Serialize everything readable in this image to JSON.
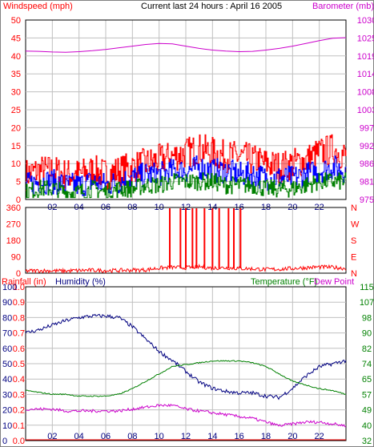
{
  "colors": {
    "frame": "#000000",
    "grid": "#c0c0c0",
    "wind": "#ff0000",
    "wind_avg": "#0000ff",
    "wind_low": "#008000",
    "barometer": "#cc00cc",
    "direction": "#ff0000",
    "rainfall": "#ff0000",
    "humidity": "#000080",
    "temperature": "#008000",
    "dew_point": "#cc00cc"
  },
  "chart_data": [
    {
      "type": "line",
      "title": "Current last 24 hours : April 16 2005",
      "ylabel": "Windspeed (mph)",
      "y2label": "Barometer (mb)",
      "ylim": [
        0,
        50
      ],
      "y2lim": [
        975,
        1030
      ],
      "yticks": [
        "0",
        "5",
        "10",
        "15",
        "20",
        "25",
        "30",
        "35",
        "40",
        "45",
        "50"
      ],
      "y2ticks": [
        "975",
        "981",
        "986",
        "992",
        "997",
        "1003",
        "1008",
        "1014",
        "1019",
        "1025",
        "1030"
      ],
      "xlim": [
        0,
        24
      ],
      "xticks": [
        "02",
        "04",
        "06",
        "08",
        "10",
        "12",
        "14",
        "16",
        "18",
        "20",
        "22"
      ],
      "grid": true,
      "x": [
        0,
        1,
        2,
        3,
        4,
        5,
        6,
        7,
        8,
        9,
        10,
        11,
        12,
        13,
        14,
        15,
        16,
        17,
        18,
        19,
        20,
        21,
        22,
        23,
        24
      ],
      "series": [
        {
          "name": "Windspeed (mph)",
          "axis": "left",
          "values": [
            7,
            8,
            8,
            7,
            7,
            8,
            7,
            8,
            9,
            10,
            11,
            12,
            13,
            14,
            13,
            12,
            12,
            11,
            10,
            9,
            10,
            11,
            13,
            14,
            12
          ]
        },
        {
          "name": "",
          "axis": "left",
          "values": [
            4,
            5,
            5,
            4,
            4,
            5,
            4,
            5,
            6,
            7,
            7,
            8,
            8,
            9,
            8,
            8,
            7,
            7,
            6,
            6,
            6,
            7,
            8,
            9,
            8
          ]
        },
        {
          "name": "",
          "axis": "left",
          "values": [
            2,
            3,
            3,
            2,
            2,
            3,
            2,
            3,
            3,
            4,
            4,
            5,
            5,
            5,
            5,
            4,
            4,
            4,
            3,
            3,
            3,
            4,
            5,
            5,
            5
          ]
        },
        {
          "name": "Barometer (mb)",
          "axis": "right",
          "values": [
            1020.5,
            1020.4,
            1020.2,
            1020.1,
            1020.3,
            1020.6,
            1021.0,
            1021.5,
            1022.0,
            1022.5,
            1022.8,
            1022.7,
            1022.0,
            1021.3,
            1020.8,
            1020.5,
            1020.3,
            1020.4,
            1020.8,
            1021.3,
            1022.0,
            1022.8,
            1023.7,
            1024.4,
            1024.6
          ]
        }
      ]
    },
    {
      "type": "line",
      "ylim": [
        0,
        360
      ],
      "yticks": [
        "0",
        "90",
        "180",
        "270",
        "360"
      ],
      "y2ticks": [
        "N",
        "E",
        "S",
        "W",
        "N"
      ],
      "xlim": [
        0,
        24
      ],
      "grid": true,
      "x": [
        0,
        1,
        2,
        3,
        4,
        5,
        6,
        7,
        8,
        9,
        10,
        11,
        12,
        13,
        14,
        15,
        16,
        17,
        18,
        19,
        20,
        21,
        22,
        23,
        24
      ],
      "series": [
        {
          "name": "",
          "values": [
            12,
            14,
            13,
            12,
            15,
            16,
            14,
            15,
            17,
            18,
            28,
            32,
            30,
            35,
            28,
            30,
            26,
            24,
            20,
            22,
            26,
            30,
            34,
            32,
            26
          ]
        }
      ],
      "spikes_x": [
        10.8,
        11.6,
        12.0,
        12.5,
        12.8,
        13.4,
        14.0,
        14.5,
        15.2,
        15.6,
        16.1
      ]
    },
    {
      "type": "line",
      "ylabel": "Rainfall (in)",
      "ylabel2": "Humidity (%)",
      "y2label": "Temperature (°F)",
      "y2label2": "Dew Point",
      "ylim": [
        0,
        1
      ],
      "yticks": [
        "0.0",
        "0.1",
        "0.2",
        "0.3",
        "0.4",
        "0.5",
        "0.6",
        "0.7",
        "0.8",
        "0.9",
        "1.0"
      ],
      "humidity_ticks": [
        "0",
        "10",
        "20",
        "30",
        "40",
        "50",
        "60",
        "70",
        "80",
        "90",
        "100"
      ],
      "y2lim": [
        32,
        115
      ],
      "y2ticks": [
        "32",
        "40",
        "49",
        "57",
        "65",
        "74",
        "82",
        "90",
        "98",
        "107",
        "115"
      ],
      "xlim": [
        0,
        24
      ],
      "xticks": [
        "02",
        "04",
        "06",
        "08",
        "10",
        "12",
        "14",
        "16",
        "18",
        "20",
        "22"
      ],
      "grid": true,
      "x": [
        0,
        1,
        2,
        3,
        4,
        5,
        6,
        7,
        8,
        9,
        10,
        11,
        12,
        13,
        14,
        15,
        16,
        17,
        18,
        19,
        20,
        21,
        22,
        23,
        24
      ],
      "series": [
        {
          "name": "Rainfall (in)",
          "axis": "rain",
          "values": [
            0,
            0,
            0,
            0,
            0,
            0,
            0,
            0,
            0,
            0,
            0,
            0,
            0,
            0,
            0,
            0,
            0,
            0,
            0,
            0,
            0,
            0,
            0,
            0,
            0
          ]
        },
        {
          "name": "Humidity (%)",
          "axis": "humidity",
          "values": [
            70,
            72,
            75,
            78,
            80,
            81,
            81,
            80,
            74,
            66,
            58,
            52,
            45,
            38,
            34,
            32,
            31,
            31,
            29,
            28,
            34,
            42,
            48,
            50,
            52
          ]
        },
        {
          "name": "Temperature (°F)",
          "axis": "right",
          "values": [
            59,
            58,
            57,
            57,
            56,
            56,
            56,
            57,
            60,
            64,
            68,
            72,
            73,
            74,
            75,
            75,
            75,
            74,
            72,
            68,
            64,
            62,
            60,
            59,
            57
          ]
        },
        {
          "name": "Dew Point",
          "axis": "right",
          "values": [
            49,
            49,
            49,
            48,
            48,
            48,
            48,
            48,
            49,
            50,
            51,
            51,
            49,
            48,
            47,
            46,
            45,
            44,
            42,
            40,
            41,
            42,
            42,
            41,
            40
          ]
        }
      ]
    }
  ]
}
